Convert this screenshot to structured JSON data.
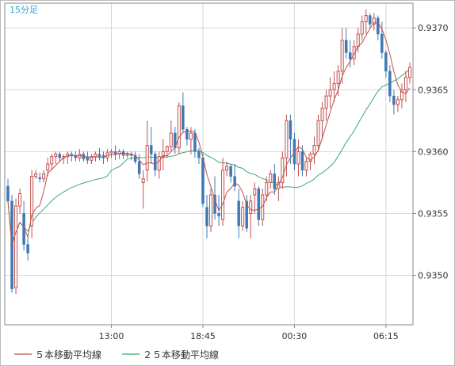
{
  "chart_data": {
    "type": "candlestick",
    "timeframe_label": "15分足",
    "ylim": [
      0.9346,
      0.9372
    ],
    "y_ticks": [
      "0.9350",
      "0.9355",
      "0.9360",
      "0.9365",
      "0.9370"
    ],
    "x_ticks": [
      {
        "label": "13:00",
        "index": 26
      },
      {
        "label": "18:45",
        "index": 49
      },
      {
        "label": "00:30",
        "index": 72
      },
      {
        "label": "06:15",
        "index": 95
      }
    ],
    "grid": true,
    "legend_position": "bottom-left",
    "colors": {
      "up": "#c0504d",
      "down": "#3f79b5",
      "ma5": "#c0504d",
      "ma25": "#3aaa77",
      "grid": "#d8d8d8",
      "axis": "#888888"
    },
    "candles": [
      [
        0.93572,
        0.93578,
        0.93558,
        0.9356
      ],
      [
        0.9356,
        0.93565,
        0.93486,
        0.93489
      ],
      [
        0.9349,
        0.93562,
        0.93485,
        0.93556
      ],
      [
        0.93556,
        0.9357,
        0.9355,
        0.93566
      ],
      [
        0.9355,
        0.9356,
        0.9352,
        0.93525
      ],
      [
        0.93525,
        0.9353,
        0.93512,
        0.93518
      ],
      [
        0.9354,
        0.93585,
        0.9353,
        0.9358
      ],
      [
        0.9358,
        0.93585,
        0.93578,
        0.93582
      ],
      [
        0.93579,
        0.93583,
        0.93575,
        0.93578
      ],
      [
        0.93578,
        0.93585,
        0.93575,
        0.93582
      ],
      [
        0.93585,
        0.93595,
        0.9358,
        0.9359
      ],
      [
        0.9359,
        0.93598,
        0.93585,
        0.93596
      ],
      [
        0.93596,
        0.936,
        0.9359,
        0.93598
      ],
      [
        0.93598,
        0.936,
        0.93592,
        0.93595
      ],
      [
        0.93595,
        0.93598,
        0.9359,
        0.93596
      ],
      [
        0.93596,
        0.936,
        0.9359,
        0.93598
      ],
      [
        0.93598,
        0.936,
        0.93592,
        0.93597
      ],
      [
        0.93597,
        0.936,
        0.93592,
        0.93595
      ],
      [
        0.93595,
        0.93602,
        0.93592,
        0.93598
      ],
      [
        0.93598,
        0.936,
        0.93592,
        0.93594
      ],
      [
        0.93596,
        0.936,
        0.9359,
        0.93593
      ],
      [
        0.93593,
        0.93598,
        0.9359,
        0.93596
      ],
      [
        0.93596,
        0.936,
        0.93592,
        0.93598
      ],
      [
        0.93598,
        0.93603,
        0.93593,
        0.93596
      ],
      [
        0.93597,
        0.936,
        0.9359,
        0.93595
      ],
      [
        0.93595,
        0.93602,
        0.93592,
        0.93599
      ],
      [
        0.93599,
        0.93602,
        0.93595,
        0.936
      ],
      [
        0.936,
        0.93605,
        0.93593,
        0.93598
      ],
      [
        0.93598,
        0.93602,
        0.93594,
        0.936
      ],
      [
        0.936,
        0.93602,
        0.93594,
        0.93597
      ],
      [
        0.93597,
        0.936,
        0.93595,
        0.93598
      ],
      [
        0.93598,
        0.936,
        0.93593,
        0.93597
      ],
      [
        0.93597,
        0.936,
        0.9359,
        0.93592
      ],
      [
        0.93592,
        0.93598,
        0.93578,
        0.93582
      ],
      [
        0.93575,
        0.93585,
        0.93554,
        0.93578
      ],
      [
        0.93585,
        0.93625,
        0.93576,
        0.93605
      ],
      [
        0.93605,
        0.9362,
        0.9359,
        0.93598
      ],
      [
        0.93598,
        0.936,
        0.9358,
        0.93585
      ],
      [
        0.93585,
        0.936,
        0.93578,
        0.93596
      ],
      [
        0.93596,
        0.9361,
        0.93585,
        0.936
      ],
      [
        0.936,
        0.93605,
        0.93595,
        0.93604
      ],
      [
        0.93604,
        0.93625,
        0.936,
        0.93615
      ],
      [
        0.93615,
        0.9362,
        0.93598,
        0.93603
      ],
      [
        0.93603,
        0.9364,
        0.93598,
        0.93637
      ],
      [
        0.93637,
        0.93648,
        0.93615,
        0.93618
      ],
      [
        0.93618,
        0.9362,
        0.93605,
        0.9361
      ],
      [
        0.9361,
        0.9362,
        0.93598,
        0.93615
      ],
      [
        0.93615,
        0.93618,
        0.93595,
        0.936
      ],
      [
        0.936,
        0.93603,
        0.9359,
        0.93595
      ],
      [
        0.93595,
        0.93598,
        0.93555,
        0.93558
      ],
      [
        0.93555,
        0.93565,
        0.9353,
        0.9354
      ],
      [
        0.9354,
        0.9357,
        0.93535,
        0.93565
      ],
      [
        0.93565,
        0.9358,
        0.93545,
        0.9355
      ],
      [
        0.9355,
        0.93565,
        0.9354,
        0.93548
      ],
      [
        0.93545,
        0.93595,
        0.9354,
        0.93585
      ],
      [
        0.93585,
        0.93592,
        0.9358,
        0.93588
      ],
      [
        0.93588,
        0.9359,
        0.93575,
        0.9358
      ],
      [
        0.9358,
        0.9359,
        0.93568,
        0.93572
      ],
      [
        0.9356,
        0.9357,
        0.9353,
        0.9354
      ],
      [
        0.9354,
        0.9356,
        0.93536,
        0.93555
      ],
      [
        0.9356,
        0.93565,
        0.93535,
        0.93538
      ],
      [
        0.9355,
        0.93565,
        0.9353,
        0.9356
      ],
      [
        0.93565,
        0.93575,
        0.9355,
        0.9357
      ],
      [
        0.9357,
        0.93572,
        0.9354,
        0.93545
      ],
      [
        0.93545,
        0.9357,
        0.9354,
        0.93565
      ],
      [
        0.93565,
        0.9358,
        0.9356,
        0.93575
      ],
      [
        0.93575,
        0.93585,
        0.9357,
        0.93582
      ],
      [
        0.93582,
        0.9359,
        0.93565,
        0.9357
      ],
      [
        0.9357,
        0.9358,
        0.9356,
        0.93575
      ],
      [
        0.93575,
        0.936,
        0.9357,
        0.93595
      ],
      [
        0.93595,
        0.9363,
        0.9358,
        0.93625
      ],
      [
        0.93625,
        0.9363,
        0.9359,
        0.9361
      ],
      [
        0.9361,
        0.93615,
        0.93585,
        0.9359
      ],
      [
        0.9359,
        0.9361,
        0.9358,
        0.936
      ],
      [
        0.936,
        0.93605,
        0.9358,
        0.93585
      ],
      [
        0.93585,
        0.93595,
        0.9358,
        0.93592
      ],
      [
        0.93592,
        0.936,
        0.93585,
        0.93598
      ],
      [
        0.93598,
        0.93612,
        0.9359,
        0.93605
      ],
      [
        0.93605,
        0.9363,
        0.936,
        0.93625
      ],
      [
        0.93625,
        0.9364,
        0.9361,
        0.93635
      ],
      [
        0.93635,
        0.9365,
        0.93625,
        0.93645
      ],
      [
        0.93645,
        0.9366,
        0.93635,
        0.9365
      ],
      [
        0.9365,
        0.93665,
        0.9364,
        0.93655
      ],
      [
        0.93655,
        0.9367,
        0.93645,
        0.93665
      ],
      [
        0.93665,
        0.937,
        0.93655,
        0.9369
      ],
      [
        0.9369,
        0.937,
        0.93675,
        0.9368
      ],
      [
        0.9368,
        0.9369,
        0.93668,
        0.93675
      ],
      [
        0.93675,
        0.9369,
        0.9367,
        0.93685
      ],
      [
        0.93685,
        0.937,
        0.9368,
        0.93695
      ],
      [
        0.93695,
        0.9371,
        0.9369,
        0.93705
      ],
      [
        0.93705,
        0.93715,
        0.93695,
        0.9371
      ],
      [
        0.9371,
        0.93712,
        0.937,
        0.93703
      ],
      [
        0.93703,
        0.93712,
        0.93698,
        0.93708
      ],
      [
        0.93708,
        0.9371,
        0.9369,
        0.93695
      ],
      [
        0.93695,
        0.93705,
        0.93675,
        0.9368
      ],
      [
        0.9368,
        0.93682,
        0.9366,
        0.93665
      ],
      [
        0.93665,
        0.9367,
        0.9364,
        0.93645
      ],
      [
        0.93645,
        0.9365,
        0.9363,
        0.93638
      ],
      [
        0.93638,
        0.93645,
        0.93632,
        0.93642
      ],
      [
        0.93642,
        0.93655,
        0.93635,
        0.9365
      ],
      [
        0.9365,
        0.93665,
        0.9364,
        0.9366
      ],
      [
        0.9366,
        0.93672,
        0.93655,
        0.93668
      ]
    ],
    "series": [
      {
        "name": "５本移動平均線"
      },
      {
        "name": "２５本移動平均線"
      }
    ]
  }
}
